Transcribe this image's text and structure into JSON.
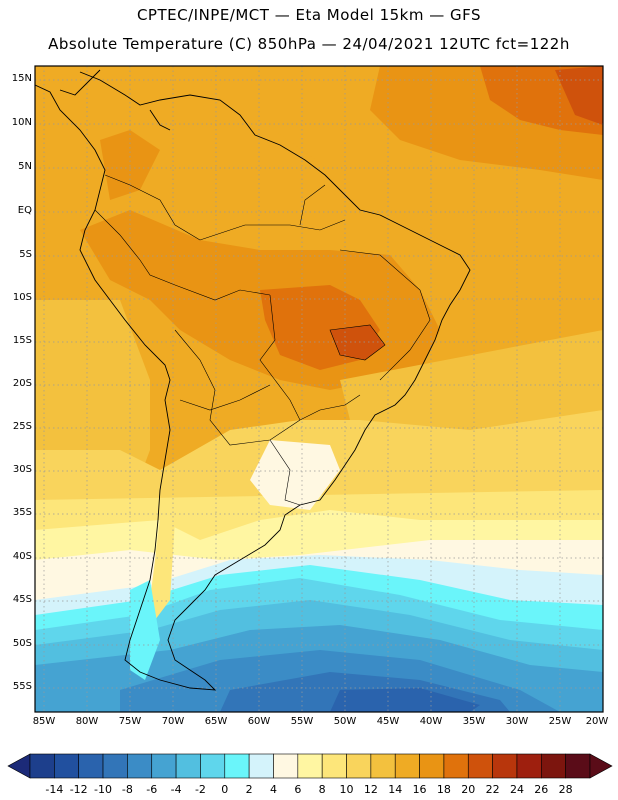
{
  "header": {
    "line1": "CPTEC/INPE/MCT —  Eta Model 15km — GFS",
    "line2": "Absolute Temperature (C) 850hPa — 24/04/2021 12UTC fct=122h"
  },
  "map": {
    "lat_labels": [
      "15N",
      "10N",
      "5N",
      "EQ",
      "5S",
      "10S",
      "15S",
      "20S",
      "25S",
      "30S",
      "35S",
      "40S",
      "45S",
      "50S",
      "55S"
    ],
    "lon_labels": [
      "85W",
      "80W",
      "75W",
      "70W",
      "65W",
      "60W",
      "55W",
      "50W",
      "45W",
      "40W",
      "35W",
      "30W",
      "25W",
      "20W"
    ],
    "lat_range": [
      -58,
      16
    ],
    "lon_range": [
      -85.5,
      -20
    ]
  },
  "colorbar": {
    "labels": [
      "-14",
      "-12",
      "-10",
      "-8",
      "-6",
      "-4",
      "-2",
      "0",
      "2",
      "4",
      "6",
      "8",
      "10",
      "12",
      "14",
      "16",
      "18",
      "20",
      "22",
      "24",
      "26",
      "28"
    ],
    "colors": [
      "#1d3f8c",
      "#21509f",
      "#2a63ad",
      "#3275b8",
      "#3b8cc6",
      "#45a3d2",
      "#52bfe0",
      "#5fd6ec",
      "#6af5fa",
      "#d4f3fb",
      "#fff8e2",
      "#fff6a2",
      "#fde67a",
      "#f9d45c",
      "#f3c13e",
      "#efab24",
      "#e99414",
      "#e0720c",
      "#cf520c",
      "#b8360c",
      "#9e1f0e",
      "#7c150e",
      "#5a0c18"
    ],
    "under_color": "#1c2a78",
    "over_color": "#5a0c18"
  }
}
